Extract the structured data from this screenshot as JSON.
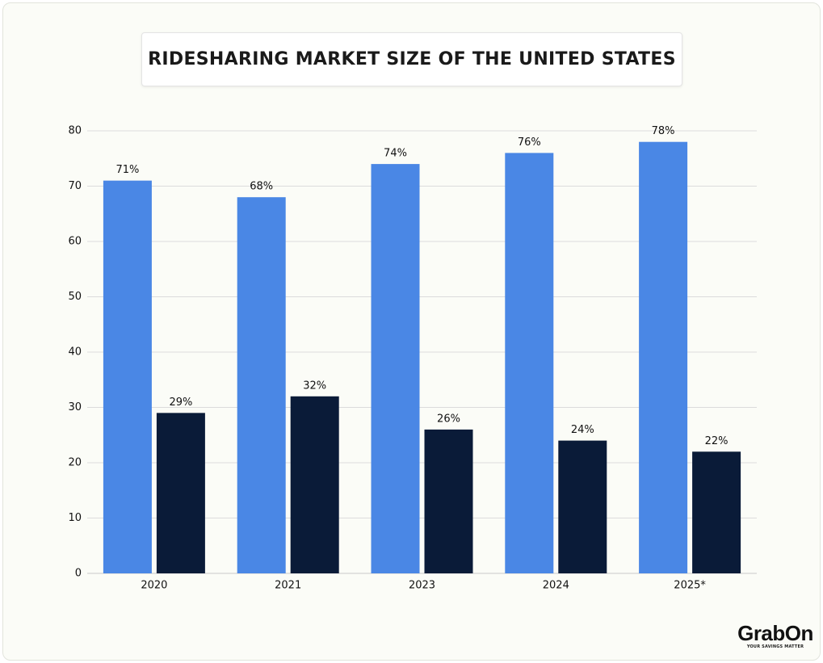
{
  "chart_data": {
    "type": "bar",
    "title": "RIDESHARING MARKET SIZE OF THE UNITED STATES",
    "categories": [
      "2020",
      "2021",
      "2023",
      "2024",
      "2025*"
    ],
    "series": [
      {
        "color": "#4a87e5",
        "values": [
          71,
          68,
          74,
          76,
          78
        ],
        "value_labels": [
          "71%",
          "68%",
          "74%",
          "76%",
          "78%"
        ]
      },
      {
        "color": "#0a1b38",
        "values": [
          29,
          32,
          26,
          24,
          22
        ],
        "value_labels": [
          "29%",
          "32%",
          "26%",
          "24%",
          "22%"
        ]
      }
    ],
    "ylim": [
      0,
      80
    ],
    "yticks": [
      0,
      10,
      20,
      30,
      40,
      50,
      60,
      70,
      80
    ],
    "grid": true
  },
  "logo": {
    "name": "GrabOn",
    "tagline": "YOUR SAVINGS MATTER"
  }
}
